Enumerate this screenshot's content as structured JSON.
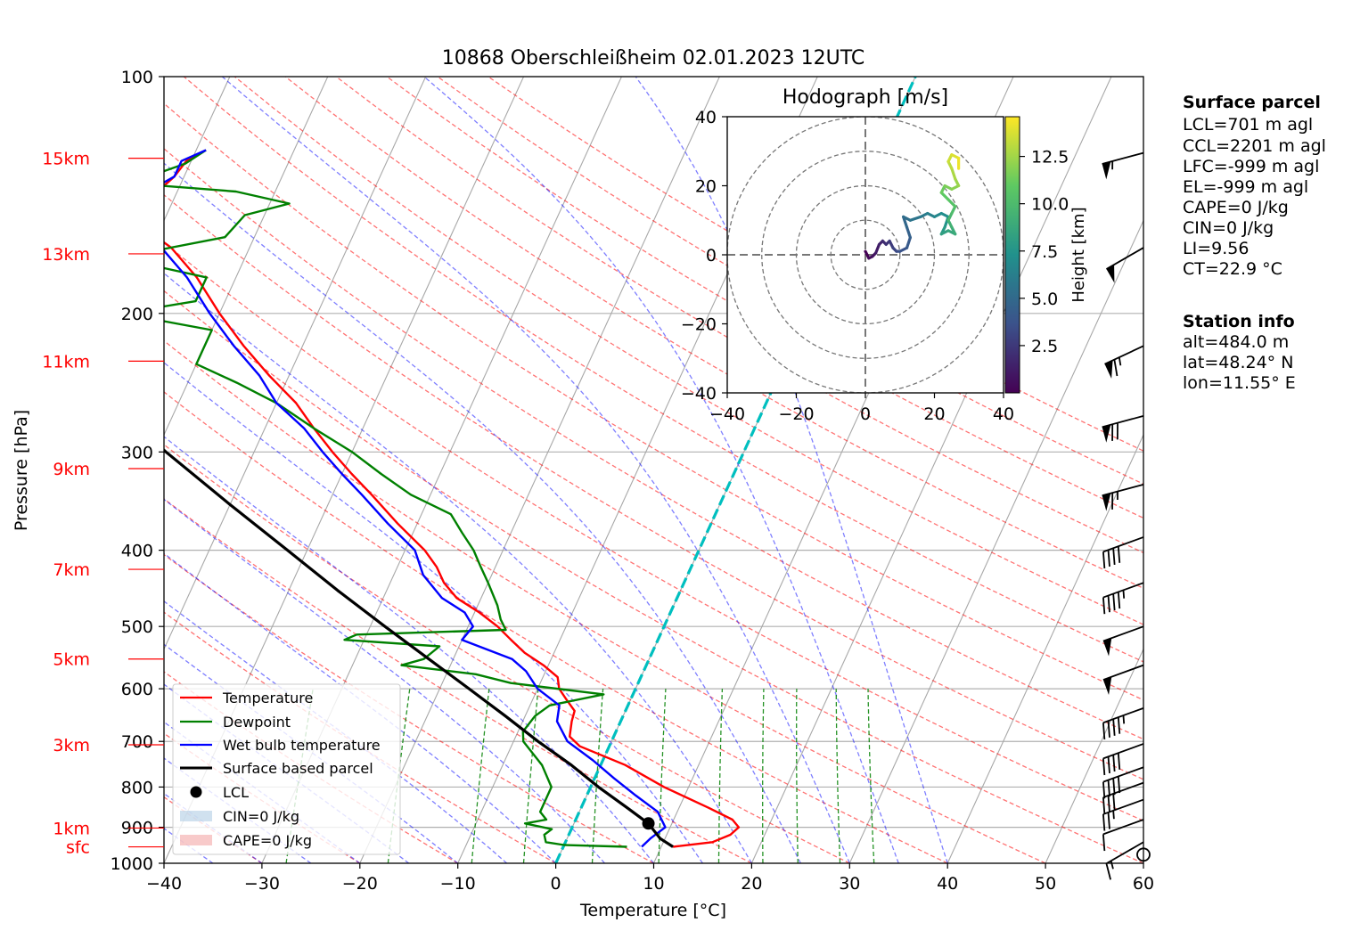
{
  "title": "10868 Oberschleißheim 02.01.2023 12UTC",
  "chart_data": {
    "type": "line",
    "subtype": "skew-T log-P diagram",
    "xlabel": "Temperature [°C]",
    "ylabel": "Pressure [hPa]",
    "xlim": [
      -40,
      60
    ],
    "ylim": [
      1000,
      100
    ],
    "y_scale": "log",
    "x_ticks": [
      "−40",
      "−30",
      "−20",
      "−10",
      "0",
      "10",
      "20",
      "30",
      "40",
      "50",
      "60"
    ],
    "y_ticks": [
      "100",
      "200",
      "300",
      "400",
      "500",
      "600",
      "700",
      "800",
      "900",
      "1000"
    ],
    "grid": true,
    "height_markers": [
      {
        "label": "sfc",
        "p": 953
      },
      {
        "label": "1km",
        "p": 902
      },
      {
        "label": "3km",
        "p": 707
      },
      {
        "label": "5km",
        "p": 550
      },
      {
        "label": "7km",
        "p": 423
      },
      {
        "label": "9km",
        "p": 315
      },
      {
        "label": "11km",
        "p": 230
      },
      {
        "label": "13km",
        "p": 168
      },
      {
        "label": "15km",
        "p": 127
      }
    ],
    "series": [
      {
        "name": "Temperature",
        "color": "#ff0000",
        "points": [
          [
            953,
            11.2
          ],
          [
            940,
            15
          ],
          [
            920,
            16.5
          ],
          [
            900,
            17
          ],
          [
            880,
            16
          ],
          [
            850,
            13
          ],
          [
            800,
            7.5
          ],
          [
            750,
            2.5
          ],
          [
            710,
            -3
          ],
          [
            690,
            -4.5
          ],
          [
            660,
            -5
          ],
          [
            640,
            -5.2
          ],
          [
            620,
            -6.5
          ],
          [
            600,
            -7.8
          ],
          [
            580,
            -8.5
          ],
          [
            560,
            -10.5
          ],
          [
            540,
            -13
          ],
          [
            520,
            -15
          ],
          [
            500,
            -17
          ],
          [
            480,
            -19.5
          ],
          [
            460,
            -22.5
          ],
          [
            440,
            -24.5
          ],
          [
            420,
            -26
          ],
          [
            400,
            -28
          ],
          [
            370,
            -32
          ],
          [
            340,
            -36
          ],
          [
            320,
            -39
          ],
          [
            300,
            -42
          ],
          [
            280,
            -45
          ],
          [
            260,
            -48
          ],
          [
            240,
            -52
          ],
          [
            220,
            -56
          ],
          [
            200,
            -60
          ],
          [
            180,
            -64
          ],
          [
            165,
            -68
          ],
          [
            155,
            -72
          ],
          [
            148,
            -74
          ],
          [
            140,
            -72
          ],
          [
            134,
            -71
          ],
          [
            128,
            -70.5
          ],
          [
            124,
            -69
          ]
        ]
      },
      {
        "name": "Dewpoint",
        "color": "#008000",
        "points": [
          [
            953,
            6.5
          ],
          [
            948,
            0
          ],
          [
            940,
            -2
          ],
          [
            920,
            -2.5
          ],
          [
            905,
            -2
          ],
          [
            890,
            -5
          ],
          [
            880,
            -3
          ],
          [
            860,
            -4
          ],
          [
            800,
            -4
          ],
          [
            750,
            -6
          ],
          [
            700,
            -9
          ],
          [
            680,
            -9.5
          ],
          [
            650,
            -9
          ],
          [
            630,
            -8
          ],
          [
            610,
            -3
          ],
          [
            590,
            -13
          ],
          [
            575,
            -17
          ],
          [
            560,
            -25
          ],
          [
            550,
            -23
          ],
          [
            530,
            -22
          ],
          [
            520,
            -32
          ],
          [
            512,
            -31
          ],
          [
            505,
            -16
          ],
          [
            490,
            -17
          ],
          [
            470,
            -18
          ],
          [
            440,
            -20
          ],
          [
            420,
            -21.5
          ],
          [
            400,
            -23
          ],
          [
            380,
            -25
          ],
          [
            360,
            -27
          ],
          [
            340,
            -32
          ],
          [
            320,
            -36
          ],
          [
            300,
            -40
          ],
          [
            280,
            -45
          ],
          [
            260,
            -50
          ],
          [
            245,
            -55
          ],
          [
            232,
            -60
          ],
          [
            222,
            -60
          ],
          [
            210,
            -60
          ],
          [
            200,
            -70
          ],
          [
            193,
            -63
          ],
          [
            180,
            -63
          ],
          [
            170,
            -73
          ],
          [
            160,
            -63
          ],
          [
            150,
            -62
          ],
          [
            145,
            -58
          ],
          [
            140,
            -64
          ],
          [
            137,
            -74
          ],
          [
            133,
            -73
          ],
          [
            129,
            -70.5
          ],
          [
            124,
            -69
          ]
        ]
      },
      {
        "name": "Wet bulb temperature",
        "color": "#0000ff",
        "points": [
          [
            953,
            8
          ],
          [
            930,
            8.5
          ],
          [
            900,
            9.5
          ],
          [
            860,
            8
          ],
          [
            820,
            5
          ],
          [
            780,
            2
          ],
          [
            740,
            -1
          ],
          [
            700,
            -4.5
          ],
          [
            660,
            -6.5
          ],
          [
            630,
            -7
          ],
          [
            600,
            -10
          ],
          [
            570,
            -12
          ],
          [
            550,
            -14
          ],
          [
            520,
            -20
          ],
          [
            500,
            -19.5
          ],
          [
            480,
            -21
          ],
          [
            460,
            -24
          ],
          [
            430,
            -27
          ],
          [
            400,
            -29
          ],
          [
            370,
            -33
          ],
          [
            340,
            -37
          ],
          [
            320,
            -40
          ],
          [
            300,
            -43
          ],
          [
            280,
            -46
          ],
          [
            260,
            -50
          ],
          [
            240,
            -53
          ],
          [
            220,
            -57
          ],
          [
            200,
            -61
          ],
          [
            180,
            -65
          ],
          [
            165,
            -69
          ],
          [
            155,
            -73
          ],
          [
            148,
            -75
          ],
          [
            140,
            -73
          ],
          [
            134,
            -71
          ],
          [
            128,
            -71
          ],
          [
            124,
            -69
          ]
        ]
      },
      {
        "name": "Surface based parcel",
        "color": "#000000",
        "points": [
          [
            953,
            11.2
          ],
          [
            930,
            9.5
          ],
          [
            890,
            7.6
          ],
          [
            850,
            4.7
          ],
          [
            800,
            0.8
          ],
          [
            750,
            -3
          ],
          [
            700,
            -7.5
          ],
          [
            650,
            -12
          ],
          [
            600,
            -17
          ],
          [
            550,
            -22.5
          ],
          [
            500,
            -28.5
          ],
          [
            450,
            -35
          ],
          [
            400,
            -42
          ],
          [
            350,
            -50
          ],
          [
            300,
            -59
          ],
          [
            250,
            -69
          ],
          [
            200,
            -80
          ],
          [
            170,
            -88
          ],
          [
            150,
            -94
          ],
          [
            130,
            -100
          ],
          [
            120,
            -103
          ],
          [
            111,
            -107
          ],
          [
            100,
            -112
          ]
        ]
      }
    ],
    "lcl": {
      "label": "LCL",
      "p": 890,
      "t": 7.6
    },
    "zero_isotherm": {
      "color": "#00bfbf"
    },
    "legend": {
      "placement": "lower left",
      "entries": [
        "Temperature",
        "Dewpoint",
        "Wet bulb temperature",
        "Surface based parcel",
        "LCL",
        "CIN=0 J/kg",
        "CAPE=0 J/kg"
      ]
    }
  },
  "hodograph": {
    "title": "Hodograph [m/s]",
    "xlim": [
      -40,
      40
    ],
    "ylim": [
      -40,
      40
    ],
    "x_ticks": [
      "−40",
      "−20",
      "0",
      "20",
      "40"
    ],
    "y_ticks": [
      "40",
      "20",
      "0",
      "−20",
      "−40"
    ],
    "rings": [
      10,
      20,
      30,
      40
    ],
    "colorbar_label": "Height [km]",
    "colorbar_ticks": [
      "2.5",
      "5.0",
      "7.5",
      "10.0",
      "12.5"
    ],
    "colormap": "viridis",
    "uv": [
      [
        0,
        1
      ],
      [
        1,
        -1
      ],
      [
        2,
        -0.5
      ],
      [
        3,
        0.5
      ],
      [
        4,
        3
      ],
      [
        5,
        4
      ],
      [
        6,
        3
      ],
      [
        7,
        4
      ],
      [
        8,
        2
      ],
      [
        9,
        1
      ],
      [
        10,
        1
      ],
      [
        12,
        2
      ],
      [
        13,
        5
      ],
      [
        12,
        8
      ],
      [
        11,
        11
      ],
      [
        13,
        10
      ],
      [
        16,
        11
      ],
      [
        18,
        12
      ],
      [
        20,
        11
      ],
      [
        22,
        12
      ],
      [
        24,
        11
      ],
      [
        23,
        8
      ],
      [
        22,
        6
      ],
      [
        24,
        7
      ],
      [
        26,
        6
      ],
      [
        25,
        8
      ],
      [
        24,
        10
      ],
      [
        25,
        12
      ],
      [
        26,
        14
      ],
      [
        24,
        16
      ],
      [
        22,
        18
      ],
      [
        23,
        20
      ],
      [
        25,
        19
      ],
      [
        27,
        20
      ],
      [
        26,
        22
      ],
      [
        25,
        25
      ],
      [
        24,
        27
      ],
      [
        25,
        29
      ],
      [
        27,
        28
      ],
      [
        27,
        25
      ]
    ]
  },
  "surface_parcel": {
    "heading": "Surface parcel",
    "lines": [
      "LCL=701 m agl",
      "CCL=2201 m agl",
      "LFC=-999 m agl",
      "EL=-999 m agl",
      "CAPE=0 J/kg",
      "CIN=0 J/kg",
      "LI=9.56",
      "CT=22.9 °C"
    ]
  },
  "station_info": {
    "heading": "Station info",
    "lines": [
      "alt=484.0 m",
      "lat=48.24° N",
      "lon=11.55° E"
    ]
  },
  "wind_barbs": [
    {
      "p": 975,
      "calm": true
    },
    {
      "p": 940,
      "dir": 240,
      "kt": 15
    },
    {
      "p": 880,
      "dir": 250,
      "kt": 12
    },
    {
      "p": 830,
      "dir": 250,
      "kt": 25
    },
    {
      "p": 790,
      "dir": 250,
      "kt": 30
    },
    {
      "p": 755,
      "dir": 250,
      "kt": 40
    },
    {
      "p": 705,
      "dir": 250,
      "kt": 40
    },
    {
      "p": 635,
      "dir": 250,
      "kt": 45
    },
    {
      "p": 560,
      "dir": 250,
      "kt": 50
    },
    {
      "p": 500,
      "dir": 250,
      "kt": 50
    },
    {
      "p": 440,
      "dir": 250,
      "kt": 45
    },
    {
      "p": 385,
      "dir": 250,
      "kt": 40
    },
    {
      "p": 330,
      "dir": 255,
      "kt": 65
    },
    {
      "p": 270,
      "dir": 255,
      "kt": 70
    },
    {
      "p": 220,
      "dir": 245,
      "kt": 65
    },
    {
      "p": 165,
      "dir": 240,
      "kt": 50
    },
    {
      "p": 125,
      "dir": 255,
      "kt": 55
    }
  ]
}
